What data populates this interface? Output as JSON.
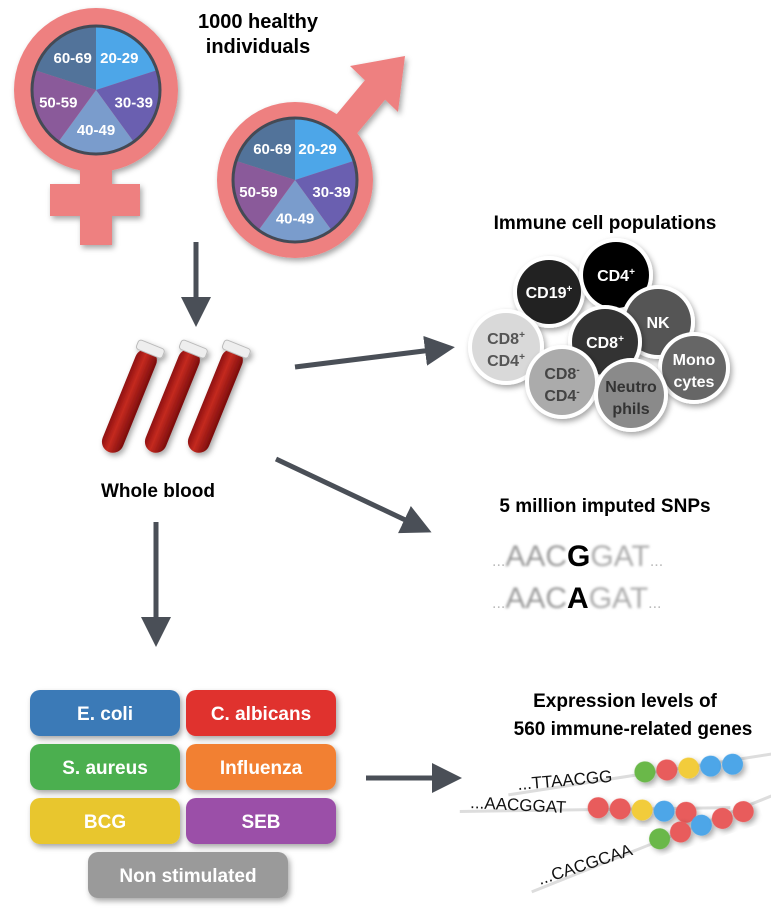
{
  "cohort": {
    "title_line1": "1000 healthy",
    "title_line2": "individuals",
    "age_groups": [
      "20-29",
      "30-39",
      "40-49",
      "50-59",
      "60-69"
    ],
    "age_colors": [
      "#4da6e8",
      "#6a5fb0",
      "#7a9ccc",
      "#8a5a9a",
      "#52739a"
    ],
    "symbol_color": "#ee8080"
  },
  "blood": {
    "label": "Whole blood"
  },
  "immune": {
    "title": "Immune cell populations",
    "cells": [
      {
        "l1": "CD19",
        "s1": "+",
        "l2": "",
        "s2": "",
        "fill": "#222222",
        "text": "#ffffff"
      },
      {
        "l1": "CD4",
        "s1": "+",
        "l2": "",
        "s2": "",
        "fill": "#000000",
        "text": "#ffffff"
      },
      {
        "l1": "NK",
        "s1": "",
        "l2": "",
        "s2": "",
        "fill": "#555555",
        "text": "#ffffff"
      },
      {
        "l1": "CD8",
        "s1": "+",
        "l2": "CD4",
        "s2": "+",
        "fill": "#d9d9d9",
        "text": "#555555"
      },
      {
        "l1": "CD8",
        "s1": "+",
        "l2": "",
        "s2": "",
        "fill": "#333333",
        "text": "#ffffff"
      },
      {
        "l1": "Mono",
        "s1": "",
        "l2": "cytes",
        "s2": "",
        "fill": "#666666",
        "text": "#ffffff"
      },
      {
        "l1": "CD8",
        "s1": "-",
        "l2": "CD4",
        "s2": "-",
        "fill": "#ababab",
        "text": "#444444"
      },
      {
        "l1": "Neutro",
        "s1": "",
        "l2": "phils",
        "s2": "",
        "fill": "#8a8a8a",
        "text": "#333333"
      }
    ]
  },
  "snps": {
    "title": "5 million imputed SNPs",
    "seq1": {
      "pre": "AAC",
      "var": "G",
      "post": "GAT"
    },
    "seq2": {
      "pre": "AAC",
      "var": "A",
      "post": "GAT"
    },
    "dots": "..."
  },
  "stimuli": [
    {
      "label": "E. coli",
      "color": "#3a7ab7"
    },
    {
      "label": "C. albicans",
      "color": "#e0302f"
    },
    {
      "label": "S. aureus",
      "color": "#4caf50"
    },
    {
      "label": "Influenza",
      "color": "#f28030"
    },
    {
      "label": "BCG",
      "color": "#e8c62e"
    },
    {
      "label": "SEB",
      "color": "#9b4fa8"
    },
    {
      "label": "Non stimulated",
      "color": "#9a9a9a"
    }
  ],
  "expression": {
    "title_line1": "Expression levels of",
    "title_line2": "560 immune-related genes",
    "rows": [
      {
        "seq": "...TTAACGG",
        "beads": [
          "#6ab84a",
          "#e85c5c",
          "#f2cc3a",
          "#4da6e8",
          "#4da6e8"
        ]
      },
      {
        "seq": "...AACGGAT",
        "beads": [
          "#e85c5c",
          "#e85c5c",
          "#f2cc3a",
          "#4da6e8",
          "#e85c5c"
        ]
      },
      {
        "seq": "...CACGCAA",
        "beads": [
          "#6ab84a",
          "#e85c5c",
          "#4da6e8",
          "#e85c5c",
          "#e85c5c"
        ]
      }
    ]
  },
  "arrow_color": "#4a4f57"
}
